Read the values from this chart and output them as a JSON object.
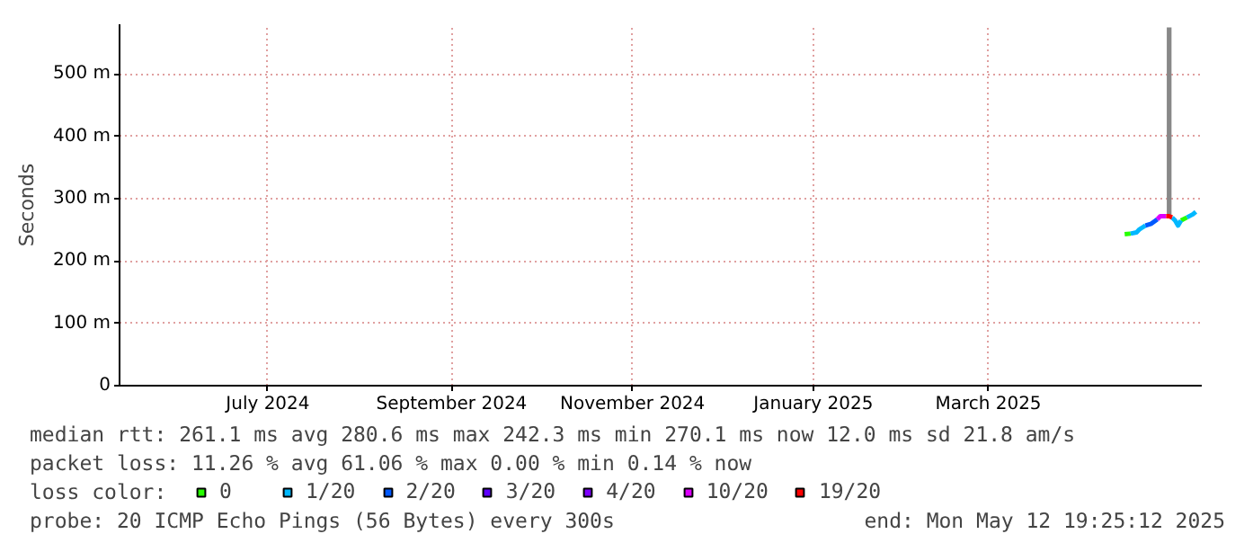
{
  "chart_data": {
    "type": "line",
    "ylabel": "Seconds",
    "xlim": [
      "2024-05-12",
      "2025-05-12"
    ],
    "xticks": [
      {
        "value": "2024-07-01",
        "label": "July 2024"
      },
      {
        "value": "2024-09-01",
        "label": "September 2024"
      },
      {
        "value": "2024-11-01",
        "label": "November 2024"
      },
      {
        "value": "2025-01-01",
        "label": "January 2025"
      },
      {
        "value": "2025-03-01",
        "label": "March 2025"
      }
    ],
    "ylim": [
      0,
      580
    ],
    "yticks": [
      0,
      {
        "value": 100,
        "label": "100 m"
      },
      {
        "value": 200,
        "label": "200 m"
      },
      {
        "value": 300,
        "label": "300 m"
      },
      {
        "value": 400,
        "label": "400 m"
      },
      {
        "value": 500,
        "label": "500 m"
      }
    ],
    "grid": true,
    "legend": "bottom",
    "legend_title": "loss color:",
    "line_style": "solid",
    "series": [
      {
        "type": "bar",
        "color": "#888888",
        "x": [
          "2025-05-01"
        ],
        "base": [
          272
        ],
        "values": [
          303
        ]
      },
      {
        "name": "0",
        "color": "#26ff00",
        "x": [
          "2025-04-16",
          "2025-04-18",
          "2025-04-19",
          "2025-05-05",
          "2025-05-07"
        ],
        "values": [
          243,
          244,
          null,
          265,
          270
        ]
      },
      {
        "name": "1/20",
        "color": "#00b8ff",
        "x": [
          "2025-04-18",
          "2025-04-20",
          "2025-04-21",
          "2025-04-23",
          "2025-04-25",
          "2025-05-02",
          "2025-05-03",
          "2025-05-04",
          "2025-05-05",
          "2025-05-06",
          "2025-05-07",
          "2025-05-09",
          "2025-05-10"
        ],
        "values": [
          244,
          246,
          251,
          257,
          null,
          270,
          265,
          257,
          265,
          null,
          270,
          275,
          279
        ]
      },
      {
        "name": "2/20",
        "color": "#0059ff",
        "x": [
          "2025-04-23",
          "2025-04-25",
          "2025-04-27"
        ],
        "values": [
          257,
          260,
          267
        ]
      },
      {
        "name": "3/20",
        "color": "#5e00ff"
      },
      {
        "name": "4/20",
        "color": "#7e00ff"
      },
      {
        "name": "10/20",
        "color": "#dd00ff",
        "x": [
          "2025-04-27",
          "2025-04-28",
          "2025-04-30"
        ],
        "values": [
          267,
          272,
          272
        ]
      },
      {
        "name": "19/20",
        "color": "#ff0000",
        "x": [
          "2025-04-30",
          "2025-05-01",
          "2025-05-02"
        ],
        "values": [
          272,
          272,
          270
        ]
      }
    ],
    "annotations": [
      "median rtt:  261.1 ms avg  280.6 ms max  242.3 ms min  270.1 ms now  12.0 ms sd  21.8   am/s",
      "packet loss: 11.26 % avg  61.06 % max  0.00 % min  0.14 % now",
      "probe:       20 ICMP Echo Pings (56 Bytes) every 300s",
      "end: Mon May 12 19:25:12 2025"
    ]
  }
}
